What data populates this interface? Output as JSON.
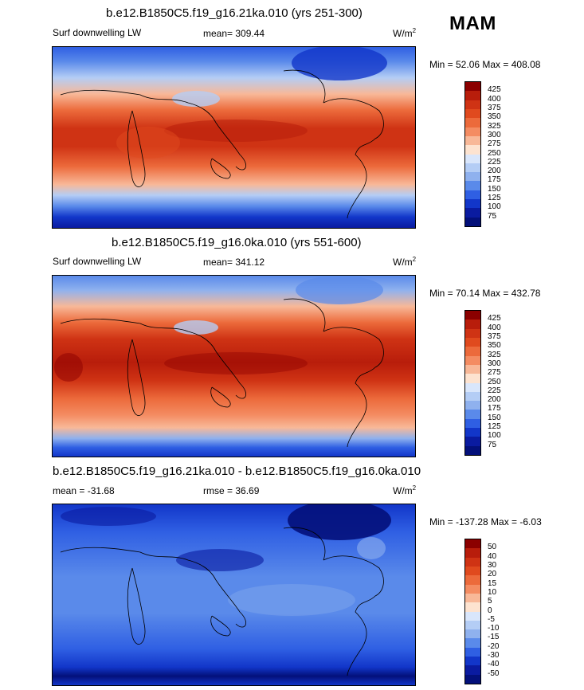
{
  "season": "MAM",
  "panels": [
    {
      "title": "b.e12.B1850C5.f19_g16.21ka.010 (yrs 251-300)",
      "left_label": "Surf downwelling LW",
      "center_label": "mean= 309.44",
      "units": "W/m",
      "units_exp": "2",
      "minmax": "Min =  52.06 Max = 408.08",
      "colorbar_levels": [
        "425",
        "400",
        "375",
        "350",
        "325",
        "300",
        "275",
        "250",
        "225",
        "200",
        "175",
        "150",
        "125",
        "100",
        "75"
      ],
      "colorbar_colors": [
        "#8b0000",
        "#b81d0b",
        "#cf3314",
        "#e04a1e",
        "#ec6a3b",
        "#f48c62",
        "#f8b898",
        "#fde3d0",
        "#d9e6fb",
        "#b4cdf5",
        "#8fb1ee",
        "#5a8aea",
        "#2f5fe3",
        "#1236c9",
        "#0a1ba0",
        "#03107a"
      ]
    },
    {
      "title": "b.e12.B1850C5.f19_g16.0ka.010 (yrs 551-600)",
      "left_label": "Surf downwelling LW",
      "center_label": "mean= 341.12",
      "units": "W/m",
      "units_exp": "2",
      "minmax": "Min =  70.14 Max = 432.78",
      "colorbar_levels": [
        "425",
        "400",
        "375",
        "350",
        "325",
        "300",
        "275",
        "250",
        "225",
        "200",
        "175",
        "150",
        "125",
        "100",
        "75"
      ],
      "colorbar_colors": [
        "#8b0000",
        "#b81d0b",
        "#cf3314",
        "#e04a1e",
        "#ec6a3b",
        "#f48c62",
        "#f8b898",
        "#fde3d0",
        "#d9e6fb",
        "#b4cdf5",
        "#8fb1ee",
        "#5a8aea",
        "#2f5fe3",
        "#1236c9",
        "#0a1ba0",
        "#03107a"
      ]
    },
    {
      "title": "b.e12.B1850C5.f19_g16.21ka.010 - b.e12.B1850C5.f19_g16.0ka.010",
      "left_label": "mean = -31.68",
      "center_label": "rmse =  36.69",
      "units": "W/m",
      "units_exp": "2",
      "minmax": "Min = -137.28 Max =  -6.03",
      "colorbar_levels": [
        "50",
        "40",
        "30",
        "20",
        "15",
        "10",
        "5",
        "0",
        "-5",
        "-10",
        "-15",
        "-20",
        "-30",
        "-40",
        "-50"
      ],
      "colorbar_colors": [
        "#8b0000",
        "#b81d0b",
        "#cf3314",
        "#e04a1e",
        "#ec6a3b",
        "#f48c62",
        "#f8b898",
        "#fde3d0",
        "#d9e6fb",
        "#b4cdf5",
        "#8fb1ee",
        "#5a8aea",
        "#2f5fe3",
        "#1236c9",
        "#0a1ba0",
        "#03107a"
      ]
    }
  ]
}
